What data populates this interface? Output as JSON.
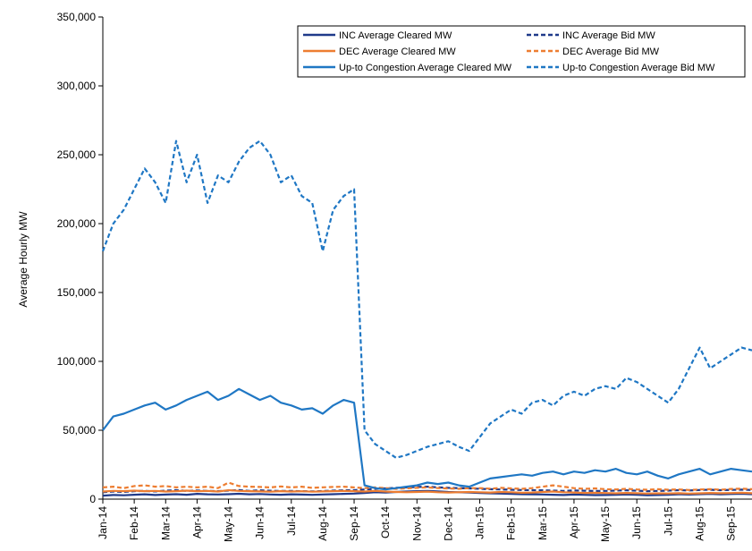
{
  "chart_data": {
    "type": "line",
    "y_label": "Average Hourly MW",
    "categories": [
      "Jan-14",
      null,
      null,
      "Feb-14",
      null,
      null,
      "Mar-14",
      null,
      null,
      "Apr-14",
      null,
      null,
      "May-14",
      null,
      null,
      "Jun-14",
      null,
      null,
      "Jul-14",
      null,
      null,
      "Aug-14",
      null,
      null,
      "Sep-14",
      null,
      null,
      "Oct-14",
      null,
      null,
      "Nov-14",
      null,
      null,
      "Dec-14",
      null,
      null,
      "Jan-15",
      null,
      null,
      "Feb-15",
      null,
      null,
      "Mar-15",
      null,
      null,
      "Apr-15",
      null,
      null,
      "May-15",
      null,
      null,
      "Jun-15",
      null,
      null,
      "Jul-15",
      null,
      null,
      "Aug-15",
      null,
      null,
      "Sep-15",
      null,
      null
    ],
    "ylim": [
      0,
      350000
    ],
    "yticks": [
      0,
      {
        "value": 50000,
        "label": "50,000"
      },
      {
        "value": 100000,
        "label": "100,000"
      },
      {
        "value": 150000,
        "label": "150,000"
      },
      {
        "value": 200000,
        "label": "200,000"
      },
      {
        "value": 250000,
        "label": "250,000"
      },
      {
        "value": 300000,
        "label": "300,000"
      },
      {
        "value": 350000,
        "label": "350,000"
      }
    ],
    "grid": false,
    "legend": "top-right",
    "series": [
      {
        "name": "INC Average Cleared MW",
        "color": "#1f3a8a",
        "style": "solid",
        "values": [
          2500,
          3000,
          2800,
          3200,
          3500,
          3000,
          3300,
          3600,
          3200,
          3800,
          3500,
          3400,
          3600,
          3900,
          3500,
          3700,
          3400,
          3200,
          3500,
          3300,
          3100,
          3400,
          3600,
          3800,
          4000,
          4500,
          5000,
          4800,
          5200,
          5500,
          5800,
          6000,
          5600,
          5200,
          5000,
          4800,
          4500,
          4200,
          4000,
          3800,
          3600,
          3500,
          3400,
          3200,
          3000,
          3300,
          3100,
          2900,
          3000,
          3200,
          3400,
          3100,
          2800,
          3000,
          3200,
          3500,
          3300,
          3600,
          3800,
          3500,
          3700,
          3900,
          3600
        ]
      },
      {
        "name": "INC Average Bid MW",
        "color": "#1f3a8a",
        "style": "dashed",
        "values": [
          5000,
          5500,
          5200,
          5800,
          6000,
          5600,
          6200,
          6500,
          6000,
          6300,
          6000,
          5800,
          6200,
          6600,
          6000,
          6400,
          6100,
          5900,
          6000,
          5800,
          5600,
          5900,
          6200,
          6400,
          6500,
          7000,
          7500,
          7800,
          8200,
          8500,
          8800,
          9000,
          8600,
          8200,
          8000,
          7800,
          7500,
          7200,
          7000,
          6800,
          6600,
          6500,
          6400,
          6200,
          6000,
          6300,
          6100,
          5900,
          6000,
          6200,
          6400,
          6100,
          5800,
          6000,
          6200,
          6500,
          6300,
          6600,
          6800,
          6500,
          6700,
          6900,
          6600
        ]
      },
      {
        "name": "DEC Average Cleared MW",
        "color": "#ed7d31",
        "style": "solid",
        "values": [
          5500,
          6000,
          5800,
          6200,
          5800,
          6000,
          5500,
          5800,
          6200,
          5800,
          6000,
          5500,
          6500,
          6000,
          5800,
          5600,
          5400,
          5800,
          5500,
          5700,
          5400,
          5600,
          5800,
          6000,
          5800,
          5500,
          6000,
          5500,
          5200,
          5000,
          5200,
          5400,
          5000,
          4800,
          5000,
          5200,
          5000,
          4800,
          5200,
          5000,
          4600,
          4800,
          5200,
          5500,
          5000,
          4800,
          4500,
          4600,
          4400,
          4200,
          4500,
          4300,
          4000,
          4200,
          4100,
          4300,
          4000,
          4200,
          4500,
          4300,
          4400,
          4600,
          4300
        ]
      },
      {
        "name": "DEC Average Bid MW",
        "color": "#ed7d31",
        "style": "dashed",
        "values": [
          8500,
          9000,
          8000,
          9500,
          10000,
          9000,
          9500,
          8500,
          9000,
          8500,
          9000,
          8000,
          12000,
          9500,
          9000,
          8800,
          8500,
          9200,
          8500,
          9000,
          8200,
          8600,
          8800,
          9000,
          8500,
          8000,
          8500,
          8000,
          7500,
          7800,
          8200,
          8500,
          8000,
          7800,
          7500,
          8000,
          8000,
          7600,
          8200,
          7800,
          7500,
          8000,
          9000,
          10000,
          9000,
          8000,
          7500,
          7800,
          7200,
          7000,
          7500,
          7000,
          6800,
          7200,
          6800,
          7000,
          6600,
          7000,
          7200,
          6800,
          7400,
          7600,
          7200
        ]
      },
      {
        "name": "Up-to Congestion Average Cleared MW",
        "color": "#1f77c4",
        "style": "solid",
        "values": [
          50000,
          60000,
          62000,
          65000,
          68000,
          70000,
          65000,
          68000,
          72000,
          75000,
          78000,
          72000,
          75000,
          80000,
          76000,
          72000,
          75000,
          70000,
          68000,
          65000,
          66000,
          62000,
          68000,
          72000,
          70000,
          10000,
          8000,
          7000,
          8000,
          9000,
          10000,
          12000,
          11000,
          12000,
          10000,
          9000,
          12000,
          15000,
          16000,
          17000,
          18000,
          17000,
          19000,
          20000,
          18000,
          20000,
          19000,
          21000,
          20000,
          22000,
          19000,
          18000,
          20000,
          17000,
          15000,
          18000,
          20000,
          22000,
          18000,
          20000,
          22000,
          21000,
          20000
        ]
      },
      {
        "name": "Up-to Congestion Average Bid MW",
        "color": "#1f77c4",
        "style": "dashed",
        "values": [
          180000,
          200000,
          210000,
          225000,
          240000,
          230000,
          215000,
          260000,
          230000,
          250000,
          215000,
          235000,
          230000,
          245000,
          255000,
          260000,
          250000,
          230000,
          235000,
          220000,
          215000,
          180000,
          210000,
          220000,
          225000,
          50000,
          40000,
          35000,
          30000,
          32000,
          35000,
          38000,
          40000,
          42000,
          38000,
          35000,
          45000,
          55000,
          60000,
          65000,
          62000,
          70000,
          72000,
          68000,
          75000,
          78000,
          75000,
          80000,
          82000,
          80000,
          88000,
          85000,
          80000,
          75000,
          70000,
          80000,
          95000,
          110000,
          95000,
          100000,
          105000,
          110000,
          108000
        ]
      }
    ]
  }
}
